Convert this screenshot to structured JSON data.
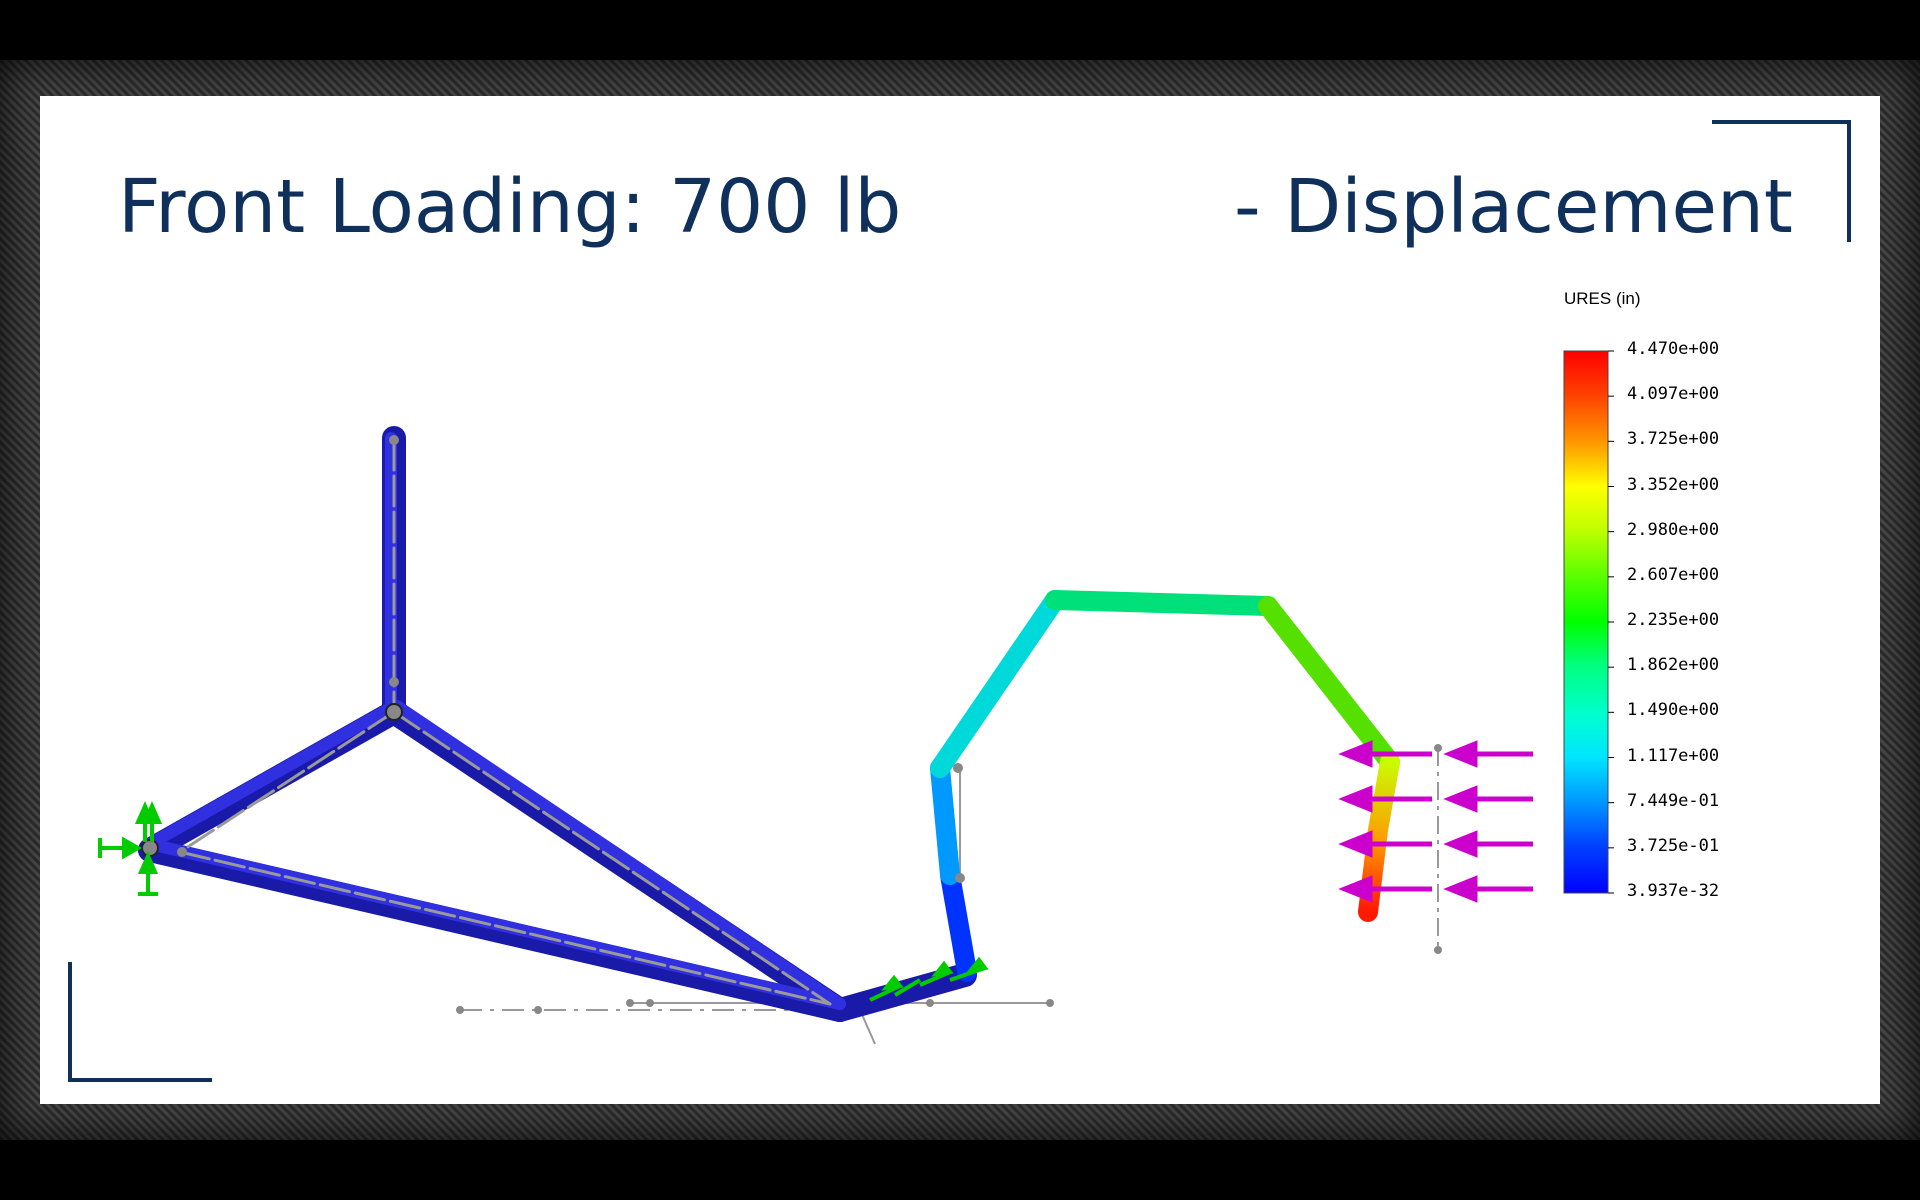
{
  "slide": {
    "title_left": "Front Loading: 700 lb",
    "title_right": "- Displacement"
  },
  "legend": {
    "title": "URES (in)",
    "ticks": [
      "4.470e+00",
      "4.097e+00",
      "3.725e+00",
      "3.352e+00",
      "2.980e+00",
      "2.607e+00",
      "2.235e+00",
      "1.862e+00",
      "1.490e+00",
      "1.117e+00",
      "7.449e-01",
      "3.725e-01",
      "3.937e-32"
    ],
    "colors": [
      "#ff0000",
      "#ff4000",
      "#ff9900",
      "#ffff00",
      "#bfff00",
      "#55ff00",
      "#00ff00",
      "#00ff80",
      "#00ffcc",
      "#00e5ff",
      "#0099ff",
      "#0044ff",
      "#0000ff"
    ]
  },
  "colors": {
    "title": "#10305c",
    "undeformed_members": "#2222cc",
    "fixture_arrows": "#00cc00",
    "load_arrows": "#cc00cc"
  }
}
